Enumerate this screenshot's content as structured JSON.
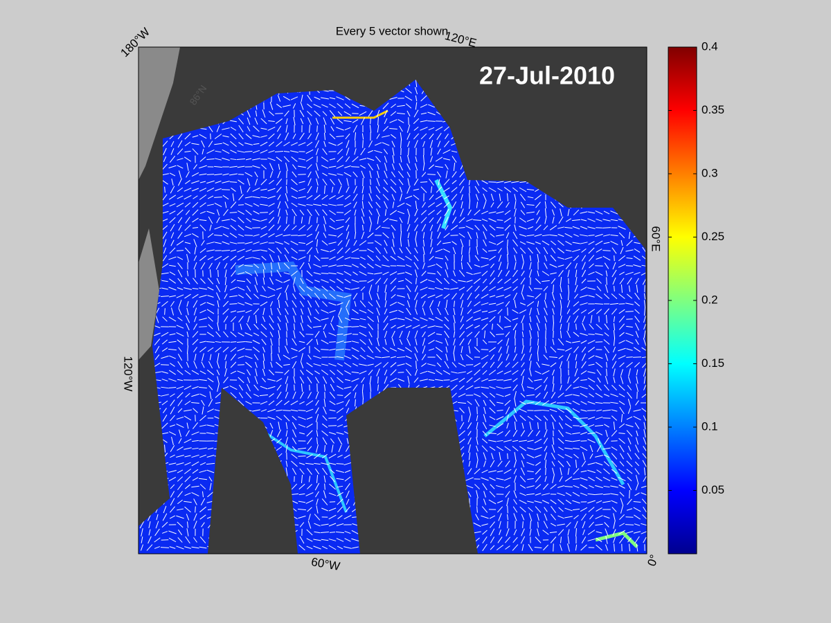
{
  "title": "Every 5 vector shown",
  "date": "27-Jul-2010",
  "map_labels": {
    "longitude": [
      "180°W",
      "120°E",
      "60°E",
      "0°",
      "60°W",
      "120°W"
    ],
    "latitude": [
      "86°N"
    ]
  },
  "colorbar": {
    "lim": [
      0,
      0.4
    ],
    "ticks": [
      0.05,
      0.1,
      0.15,
      0.2,
      0.25,
      0.3,
      0.35,
      0.4
    ]
  }
}
